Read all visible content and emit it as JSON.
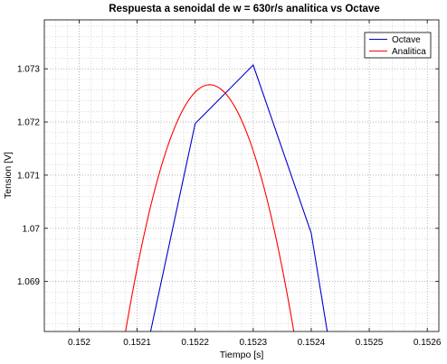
{
  "chart_data": {
    "type": "line",
    "title": "Respuesta a senoidal de w = 630r/s analitica vs Octave",
    "xlabel": "Tiempo [s]",
    "ylabel": "Tension [V]",
    "xlim": [
      0.15194,
      0.15262
    ],
    "ylim": [
      1.06806,
      1.07392
    ],
    "grid": true,
    "minor_grid": true,
    "legend_position": "top-right",
    "x_ticks": [
      {
        "value": 0.152,
        "label": "0.152"
      },
      {
        "value": 0.1521,
        "label": "0.1521"
      },
      {
        "value": 0.1522,
        "label": "0.1522"
      },
      {
        "value": 0.1523,
        "label": "0.1523"
      },
      {
        "value": 0.1524,
        "label": "0.1524"
      },
      {
        "value": 0.1525,
        "label": "0.1525"
      },
      {
        "value": 0.1526,
        "label": "0.1526"
      }
    ],
    "y_ticks": [
      {
        "value": 1.069,
        "label": "1.069"
      },
      {
        "value": 1.07,
        "label": "1.07"
      },
      {
        "value": 1.071,
        "label": "1.071"
      },
      {
        "value": 1.072,
        "label": "1.072"
      },
      {
        "value": 1.073,
        "label": "1.073"
      }
    ],
    "series": [
      {
        "name": "Octave",
        "color": "#0000cc",
        "x": [
          0.15212,
          0.1522,
          0.1523,
          0.1524,
          0.15243
        ],
        "y": [
          1.0679,
          1.07197,
          1.07307,
          1.06991,
          1.0679
        ]
      },
      {
        "name": "Analitica",
        "color": "#ff0000",
        "curve": {
          "form": "parabola",
          "vertex_x": 0.152225,
          "vertex_y": 1.0727,
          "passes_through": [
            0.15208,
            1.06806
          ]
        }
      }
    ]
  }
}
